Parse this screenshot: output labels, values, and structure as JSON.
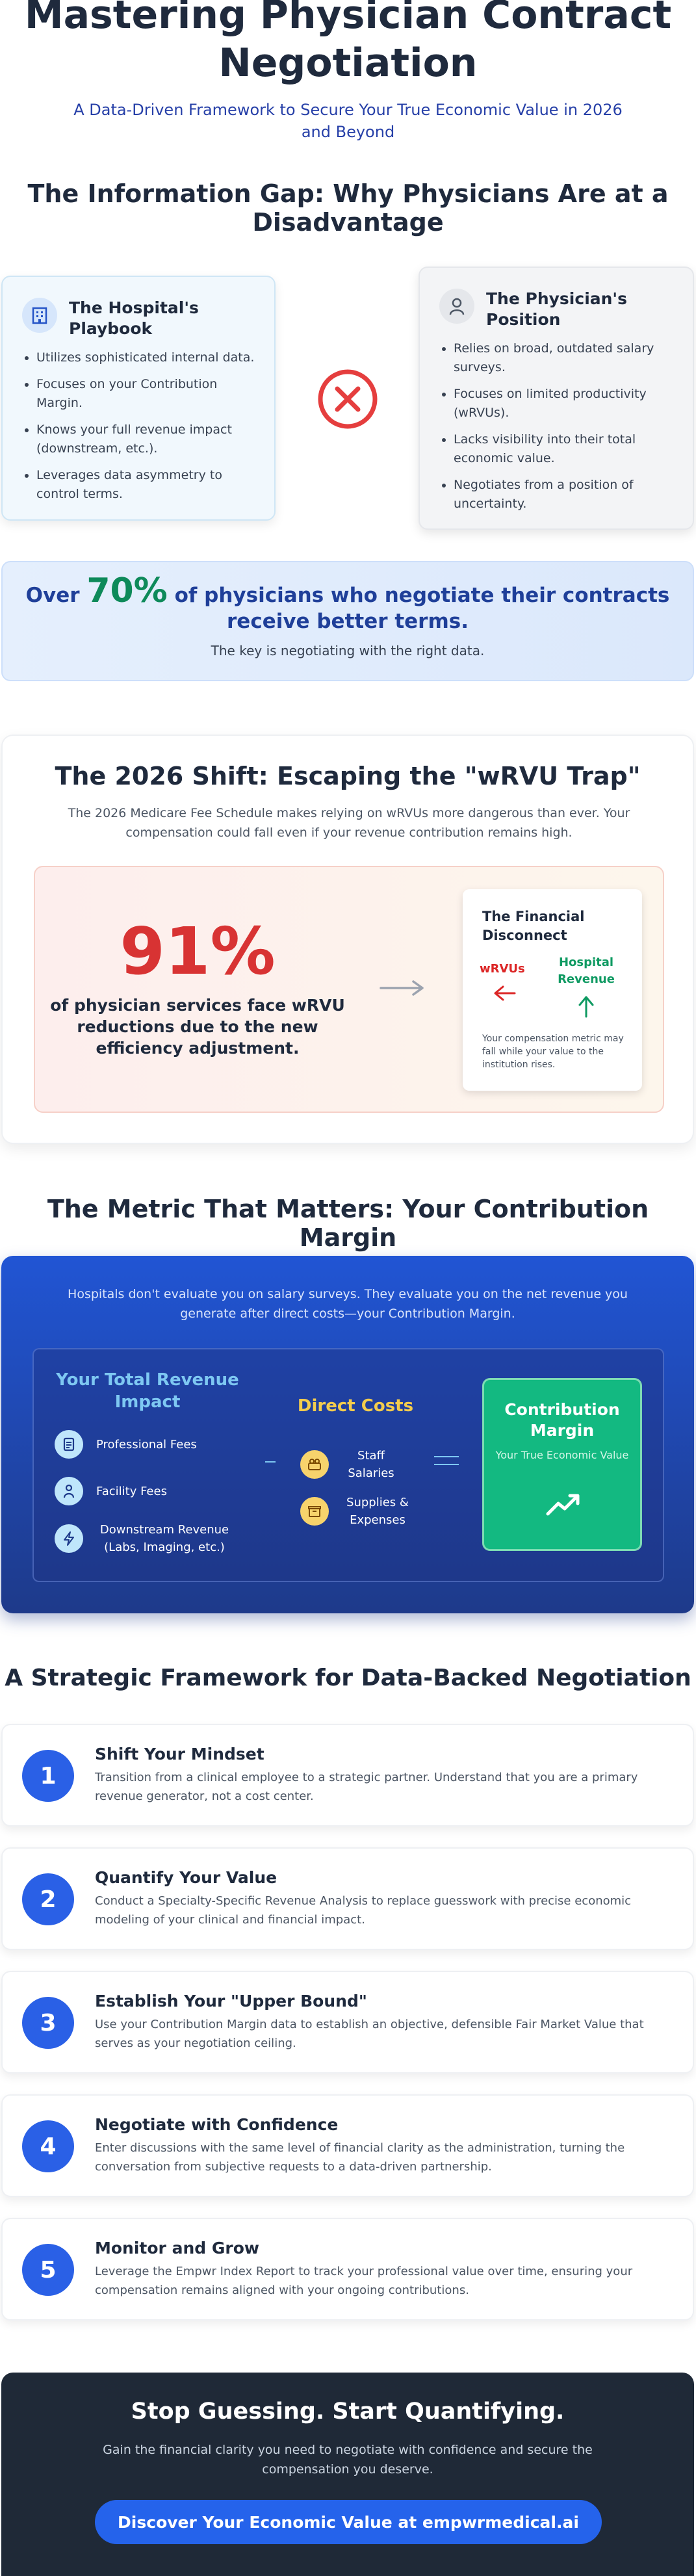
{
  "hero": {
    "title_line1": "Mastering Physician Contract",
    "title_line2": "Negotiation",
    "subtitle": "A Data-Driven Framework to Secure Your True Economic Value in 2026 and Beyond"
  },
  "info_gap": {
    "title": "The Information Gap: Why Physicians Are at a Disadvantage",
    "hospital": {
      "title": "The Hospital's Playbook",
      "icon": "building-icon",
      "items": [
        "Utilizes sophisticated internal data.",
        "Focuses on your Contribution Margin.",
        "Knows your full revenue impact (downstream, etc.).",
        "Leverages data asymmetry to control terms."
      ]
    },
    "physician": {
      "title": "The Physician's Position",
      "icon": "user-icon",
      "items": [
        "Relies on broad, outdated salary surveys.",
        "Focuses on limited productivity (wRVUs).",
        "Lacks visibility into their total economic value.",
        "Negotiates from a position of uncertainty."
      ]
    }
  },
  "banner": {
    "prefix": "Over",
    "stat": "70%",
    "suffix": "of physicians who negotiate their contracts receive better terms.",
    "note": "The key is negotiating with the right data."
  },
  "shift": {
    "title": "The 2026 Shift: Escaping the \"wRVU Trap\"",
    "desc": "The 2026 Medicare Fee Schedule makes relying on wRVUs more dangerous than ever. Your compensation could fall even if your revenue contribution remains high.",
    "stat": "91%",
    "stat_text": "of physician services face wRVU reductions due to the new efficiency adjustment.",
    "disconnect": {
      "title": "The Financial Disconnect",
      "left_label": "wRVUs",
      "right_label": "Hospital Revenue",
      "note": "Your compensation metric may fall while your value to the institution rises."
    }
  },
  "metric": {
    "title": "The Metric That Matters: Your Contribution Margin",
    "desc": "Hospitals don't evaluate you on salary surveys. They evaluate you on the net revenue you generate after direct costs—your Contribution Margin.",
    "revenue": {
      "title": "Your Total Revenue Impact",
      "items": [
        {
          "label": "Professional Fees",
          "icon": "document-icon"
        },
        {
          "label": "Facility Fees",
          "icon": "person-icon"
        },
        {
          "label": "Downstream Revenue (Labs, Imaging, etc.)",
          "icon": "bolt-icon"
        }
      ]
    },
    "costs": {
      "title": "Direct Costs",
      "items": [
        {
          "label": "Staff Salaries",
          "icon": "staff-icon"
        },
        {
          "label": "Supplies & Expenses",
          "icon": "box-icon"
        }
      ]
    },
    "result": {
      "title": "Contribution Margin",
      "sub": "Your True Economic Value"
    }
  },
  "framework": {
    "title": "A Strategic Framework for Data-Backed Negotiation",
    "steps": [
      {
        "num": "1",
        "title": "Shift Your Mindset",
        "desc": "Transition from a clinical employee to a strategic partner. Understand that you are a primary revenue generator, not a cost center."
      },
      {
        "num": "2",
        "title": "Quantify Your Value",
        "desc": "Conduct a Specialty-Specific Revenue Analysis to replace guesswork with precise economic modeling of your clinical and financial impact."
      },
      {
        "num": "3",
        "title": "Establish Your \"Upper Bound\"",
        "desc": "Use your Contribution Margin data to establish an objective, defensible Fair Market Value that serves as your negotiation ceiling."
      },
      {
        "num": "4",
        "title": "Negotiate with Confidence",
        "desc": "Enter discussions with the same level of financial clarity as the administration, turning the conversation from subjective requests to a data-driven partnership."
      },
      {
        "num": "5",
        "title": "Monitor and Grow",
        "desc": "Leverage the Empwr Index Report to track your professional value over time, ensuring your compensation remains aligned with your ongoing contributions."
      }
    ]
  },
  "cta": {
    "title": "Stop Guessing. Start Quantifying.",
    "desc": "Gain the financial clarity you need to negotiate with confidence and secure the compensation you deserve.",
    "button": "Discover Your Economic Value at empwrmedical.ai"
  },
  "colors": {
    "primary": "#2563eb",
    "heading": "#1f2a3d",
    "success": "#13b981",
    "danger": "#d83333",
    "accent_gold": "#f3cc4d"
  }
}
